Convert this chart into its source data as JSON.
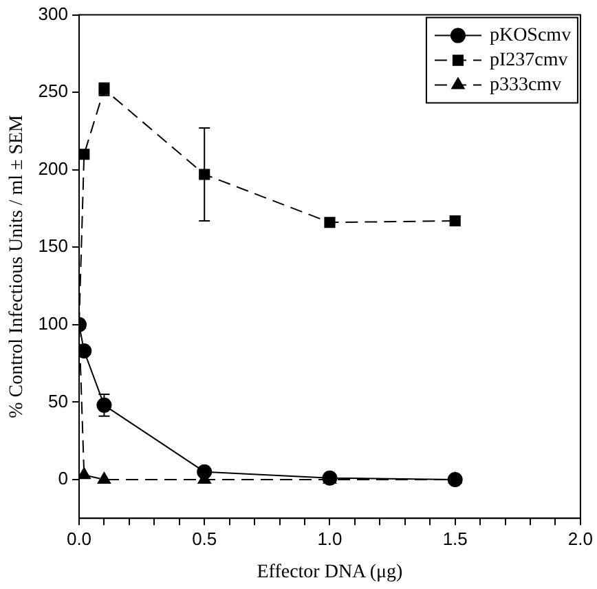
{
  "chart_data": {
    "type": "line",
    "xlabel": "Effector DNA (μg)",
    "ylabel": "% Control Infectious Units / ml ± SEM",
    "x": [
      0,
      0.02,
      0.1,
      0.5,
      1.0,
      1.5
    ],
    "series": [
      {
        "name": "pKOScmv",
        "color": "#000000",
        "marker": "circle",
        "line_style": "solid",
        "values": [
          100,
          83,
          48,
          5,
          1,
          0
        ],
        "errors": [
          null,
          null,
          7,
          null,
          null,
          null
        ]
      },
      {
        "name": "pI237cmv",
        "color": "#000000",
        "marker": "square",
        "line_style": "dashed",
        "values": [
          100,
          210,
          252,
          197,
          166,
          167
        ],
        "errors": [
          null,
          null,
          4,
          30,
          null,
          null
        ]
      },
      {
        "name": "p333cmv",
        "color": "#000000",
        "marker": "triangle",
        "line_style": "dashed",
        "values": [
          100,
          3,
          0,
          0,
          0,
          0
        ]
      }
    ],
    "xlim": [
      0,
      2
    ],
    "xticks": [
      {
        "value": 0,
        "label": "0.0"
      },
      {
        "value": 0.1,
        "label": null
      },
      {
        "value": 0.2,
        "label": null
      },
      {
        "value": 0.3,
        "label": null
      },
      {
        "value": 0.4,
        "label": null
      },
      {
        "value": 0.5,
        "label": "0.5"
      },
      {
        "value": 0.6,
        "label": null
      },
      {
        "value": 0.7,
        "label": null
      },
      {
        "value": 0.8,
        "label": null
      },
      {
        "value": 0.9,
        "label": null
      },
      {
        "value": 1.0,
        "label": "1.0"
      },
      {
        "value": 1.1,
        "label": null
      },
      {
        "value": 1.2,
        "label": null
      },
      {
        "value": 1.3,
        "label": null
      },
      {
        "value": 1.4,
        "label": null
      },
      {
        "value": 1.5,
        "label": "1.5"
      },
      {
        "value": 1.6,
        "label": null
      },
      {
        "value": 1.7,
        "label": null
      },
      {
        "value": 1.8,
        "label": null
      },
      {
        "value": 1.9,
        "label": null
      },
      {
        "value": 2.0,
        "label": "2.0"
      }
    ],
    "ylim": [
      -25,
      300
    ],
    "yticks": [
      0,
      50,
      100,
      150,
      200,
      250,
      300
    ],
    "grid": false,
    "legend": "top right"
  }
}
